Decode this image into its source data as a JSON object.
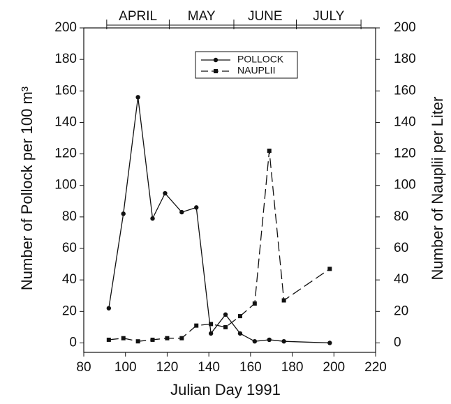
{
  "chart_data": {
    "type": "line",
    "x_label": "Julian Day 1991",
    "y_label": "Number of Pollock per 100 m³",
    "y2_label": "Number of Nauplii per Liter",
    "xlim": [
      80,
      220
    ],
    "xticks": [
      80,
      100,
      120,
      140,
      160,
      180,
      200,
      220
    ],
    "ylim": [
      -6,
      200
    ],
    "yticks": [
      0,
      20,
      40,
      60,
      80,
      100,
      120,
      140,
      160,
      180,
      200
    ],
    "y2lim": [
      -6,
      200
    ],
    "y2ticks": [
      0,
      20,
      40,
      60,
      80,
      100,
      120,
      140,
      160,
      180,
      200
    ],
    "months": [
      {
        "label": "APRIL",
        "start": 91,
        "end": 121
      },
      {
        "label": "MAY",
        "start": 121,
        "end": 152
      },
      {
        "label": "JUNE",
        "start": 152,
        "end": 182
      },
      {
        "label": "JULY",
        "start": 182,
        "end": 213
      }
    ],
    "legend_position": "upper center",
    "series": [
      {
        "name": "POLLOCK",
        "color": "#111111",
        "marker": "circle",
        "dash": "solid",
        "x": [
          92,
          99,
          106,
          113,
          119,
          127,
          134,
          141,
          148,
          155,
          162,
          169,
          176,
          198
        ],
        "values": [
          22,
          82,
          156,
          79,
          95,
          83,
          86,
          6,
          18,
          6,
          1,
          2,
          1,
          0
        ]
      },
      {
        "name": "NAUPLII",
        "color": "#111111",
        "marker": "square",
        "dash": "dashed",
        "axis": "y2",
        "x": [
          92,
          99,
          106,
          113,
          120,
          127,
          134,
          141,
          148,
          155,
          162,
          169,
          176,
          198
        ],
        "values": [
          2,
          3,
          1,
          2,
          3,
          3,
          11,
          12,
          10,
          17,
          25,
          122,
          27,
          47
        ]
      }
    ]
  }
}
